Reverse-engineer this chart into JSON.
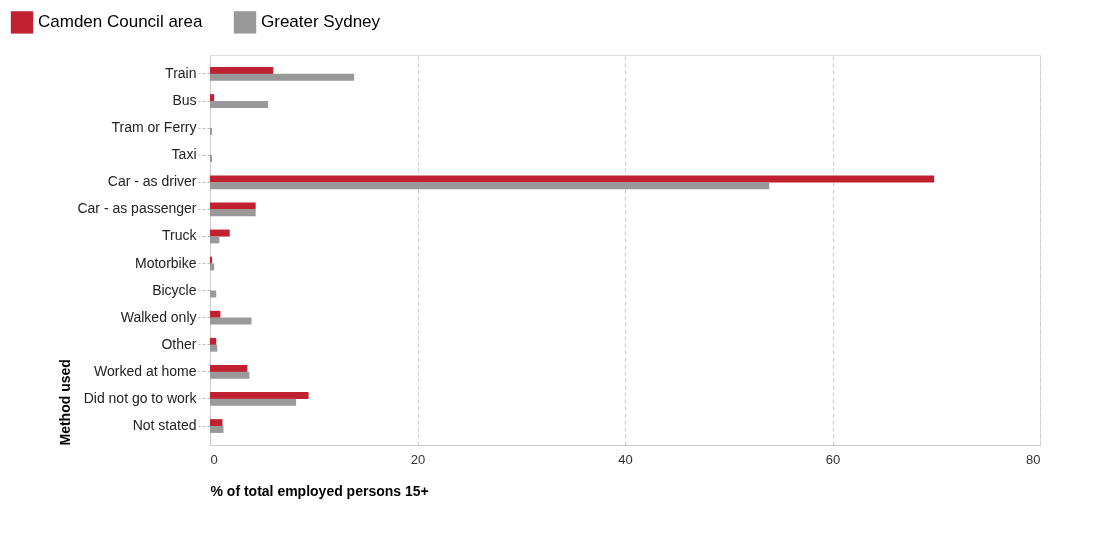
{
  "chart_data": {
    "type": "bar",
    "orientation": "horizontal",
    "xlabel": "% of total employed persons 15+",
    "ylabel": "Method used",
    "categories": [
      "Train",
      "Bus",
      "Tram or Ferry",
      "Taxi",
      "Car - as driver",
      "Car - as passenger",
      "Truck",
      "Motorbike",
      "Bicycle",
      "Walked only",
      "Other",
      "Worked at home",
      "Did not go to work",
      "Not stated"
    ],
    "series": [
      {
        "name": "Camden Council area",
        "color": "#c0202f",
        "values": [
          6.1,
          0.4,
          0,
          0,
          69.8,
          4.4,
          1.9,
          0.2,
          0,
          1.0,
          0.6,
          3.6,
          9.5,
          1.2
        ]
      },
      {
        "name": "Greater Sydney",
        "color": "#999999",
        "values": [
          13.9,
          5.6,
          0.2,
          0.2,
          53.9,
          4.4,
          0.9,
          0.4,
          0.6,
          4.0,
          0.7,
          3.8,
          8.3,
          1.3
        ]
      }
    ],
    "xlim": [
      0,
      80
    ],
    "xticks": [
      0,
      20,
      40,
      60,
      80
    ],
    "grid": "x",
    "legend": "top left"
  }
}
